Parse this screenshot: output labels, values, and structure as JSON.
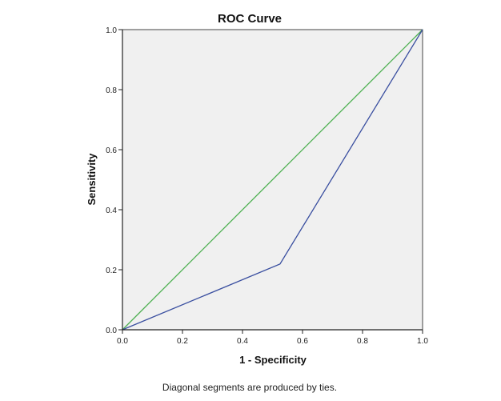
{
  "chart_data": {
    "type": "line",
    "title": "ROC Curve",
    "xlabel": "1 - Specificity",
    "ylabel": "Sensitivity",
    "xlim": [
      0,
      1
    ],
    "ylim": [
      0,
      1
    ],
    "xticks": [
      "0.0",
      "0.2",
      "0.4",
      "0.6",
      "0.8",
      "1.0"
    ],
    "yticks": [
      "0.0",
      "0.2",
      "0.4",
      "0.6",
      "0.8",
      "1.0"
    ],
    "grid": false,
    "plot_background": "#f0f0f0",
    "series": [
      {
        "name": "ROC curve",
        "color": "#3a4fa0",
        "x": [
          0,
          0.525,
          1
        ],
        "y": [
          0,
          0.219,
          1
        ]
      },
      {
        "name": "Reference line",
        "color": "#4caf50",
        "x": [
          0,
          1
        ],
        "y": [
          0,
          1
        ]
      }
    ],
    "footnote": "Diagonal segments are produced by ties."
  }
}
